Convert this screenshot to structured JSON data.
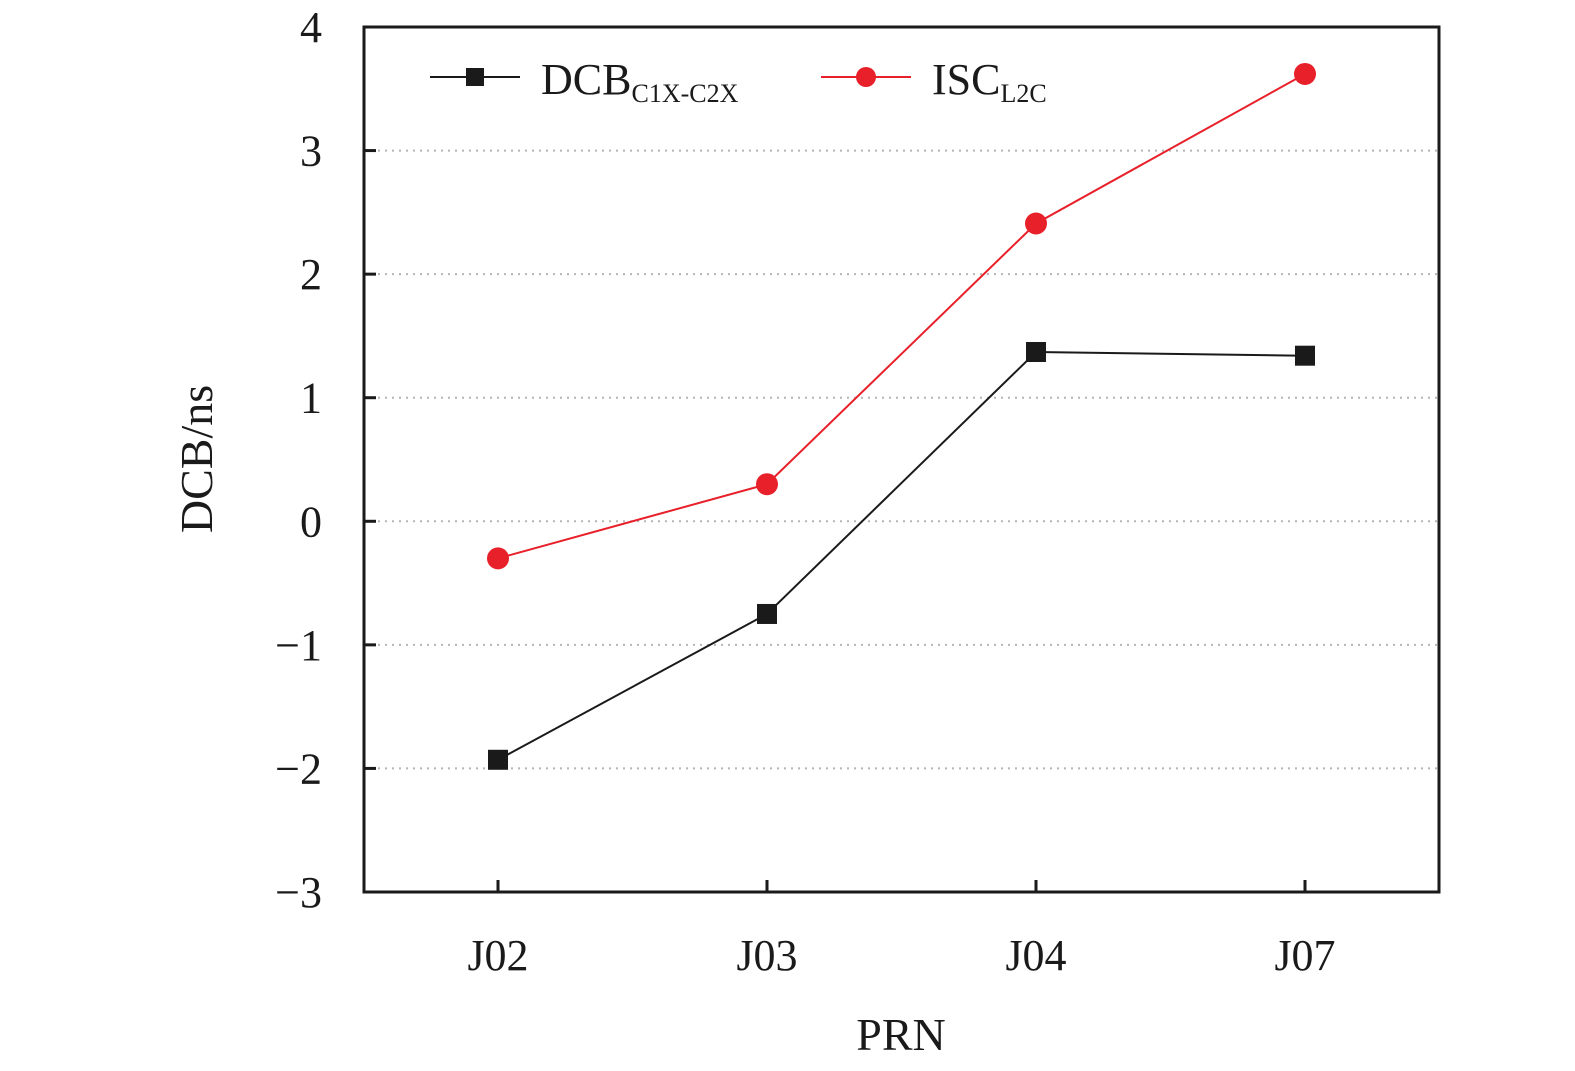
{
  "chart_data": {
    "type": "line",
    "xlabel": "PRN",
    "ylabel": "DCB/ns",
    "categories": [
      "J02",
      "J03",
      "J04",
      "J07"
    ],
    "ylim": [
      -3,
      4
    ],
    "yticks": [
      "−3",
      "−2",
      "−1",
      "0",
      "1",
      "2",
      "3",
      "4"
    ],
    "grid": "horizontal dotted",
    "legend_position": "top",
    "series": [
      {
        "name": "DCB",
        "name_subscript": "C1X-C2X",
        "marker": "square",
        "color": "#1a1a1a",
        "values": [
          -1.93,
          -0.75,
          1.37,
          1.34
        ]
      },
      {
        "name": "ISC",
        "name_subscript": "L2C",
        "marker": "circle",
        "color": "#e8202a",
        "values": [
          -0.3,
          0.3,
          2.41,
          3.62
        ]
      }
    ]
  }
}
